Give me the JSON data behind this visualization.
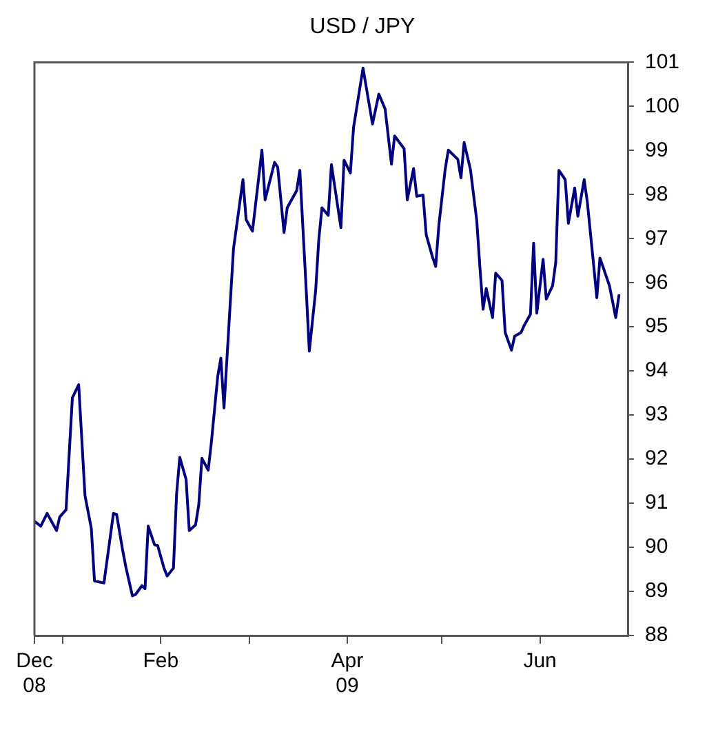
{
  "chart_data": {
    "type": "line",
    "title": "USD / JPY",
    "x": [
      "2008-12-23",
      "2008-12-25",
      "2008-12-27",
      "2008-12-28",
      "2008-12-30",
      "2008-12-31",
      "2009-01-02",
      "2009-01-04",
      "2009-01-06",
      "2009-01-08",
      "2009-01-10",
      "2009-01-11",
      "2009-01-14",
      "2009-01-17",
      "2009-01-18",
      "2009-01-20",
      "2009-01-21",
      "2009-01-23",
      "2009-01-24",
      "2009-01-26",
      "2009-01-27",
      "2009-01-28",
      "2009-01-30",
      "2009-01-31",
      "2009-02-02",
      "2009-02-03",
      "2009-02-05",
      "2009-02-06",
      "2009-02-07",
      "2009-02-09",
      "2009-02-10",
      "2009-02-12",
      "2009-02-13",
      "2009-02-14",
      "2009-02-16",
      "2009-02-17",
      "2009-02-19",
      "2009-02-20",
      "2009-02-21",
      "2009-02-24",
      "2009-02-27",
      "2009-02-28",
      "2009-03-02",
      "2009-03-05",
      "2009-03-06",
      "2009-03-09",
      "2009-03-10",
      "2009-03-12",
      "2009-03-13",
      "2009-03-16",
      "2009-03-17",
      "2009-03-19",
      "2009-03-20",
      "2009-03-22",
      "2009-03-23",
      "2009-03-24",
      "2009-03-26",
      "2009-03-27",
      "2009-03-30",
      "2009-03-31",
      "2009-04-02",
      "2009-04-03",
      "2009-04-06",
      "2009-04-09",
      "2009-04-11",
      "2009-04-13",
      "2009-04-15",
      "2009-04-16",
      "2009-04-19",
      "2009-04-20",
      "2009-04-22",
      "2009-04-23",
      "2009-04-25",
      "2009-04-26",
      "2009-04-28",
      "2009-04-29",
      "2009-04-30",
      "2009-05-02",
      "2009-05-03",
      "2009-05-05",
      "2009-05-06",
      "2009-05-07",
      "2009-05-08",
      "2009-05-10",
      "2009-05-12",
      "2009-05-13",
      "2009-05-14",
      "2009-05-15",
      "2009-05-17",
      "2009-05-18",
      "2009-05-20",
      "2009-05-21",
      "2009-05-23",
      "2009-05-24",
      "2009-05-26",
      "2009-05-27",
      "2009-05-29",
      "2009-05-30",
      "2009-05-31",
      "2009-06-02",
      "2009-06-03",
      "2009-06-05",
      "2009-06-06",
      "2009-06-07",
      "2009-06-09",
      "2009-06-10",
      "2009-06-12",
      "2009-06-13",
      "2009-06-15",
      "2009-06-16",
      "2009-06-18",
      "2009-06-19",
      "2009-06-20",
      "2009-06-23",
      "2009-06-25",
      "2009-06-26"
    ],
    "series": [
      {
        "color": "#000080",
        "values": [
          90.59,
          90.48,
          90.77,
          90.64,
          90.38,
          90.69,
          90.85,
          93.39,
          93.69,
          91.17,
          90.43,
          89.24,
          89.19,
          90.77,
          90.75,
          89.9,
          89.53,
          88.9,
          88.93,
          89.13,
          89.06,
          90.48,
          90.06,
          90.04,
          89.53,
          89.35,
          89.53,
          91.22,
          92.04,
          91.54,
          90.38,
          90.51,
          90.96,
          92.02,
          91.75,
          92.38,
          93.87,
          94.29,
          93.16,
          96.77,
          98.34,
          97.43,
          97.17,
          99.01,
          97.88,
          98.73,
          98.62,
          97.14,
          97.7,
          98.09,
          98.55,
          95.87,
          94.45,
          95.82,
          96.98,
          97.7,
          97.53,
          98.68,
          97.25,
          98.78,
          98.49,
          99.52,
          100.87,
          99.6,
          100.28,
          99.94,
          98.69,
          99.33,
          99.04,
          97.88,
          98.59,
          97.96,
          97.99,
          97.09,
          96.58,
          96.37,
          97.3,
          98.57,
          99.01,
          98.87,
          98.8,
          98.38,
          99.18,
          98.57,
          97.41,
          96.35,
          95.4,
          95.87,
          95.21,
          96.22,
          96.05,
          94.87,
          94.47,
          94.79,
          94.87,
          95.03,
          95.29,
          96.9,
          95.31,
          96.53,
          95.63,
          95.93,
          96.46,
          98.55,
          98.34,
          97.35,
          98.15,
          97.51,
          98.34,
          97.83,
          96.4,
          95.66,
          96.56,
          95.93,
          95.21,
          95.71
        ]
      }
    ],
    "xlim": [
      "2008-12-23",
      "2009-06-29"
    ],
    "xticks": [
      {
        "value": "2008-12-23",
        "label": "Dec\n08"
      },
      {
        "value": "2009-01-01",
        "label": null
      },
      {
        "value": "2009-02-01",
        "label": "Feb"
      },
      {
        "value": "2009-03-01",
        "label": null
      },
      {
        "value": "2009-04-01",
        "label": "Apr\n09"
      },
      {
        "value": "2009-05-01",
        "label": null
      },
      {
        "value": "2009-06-01",
        "label": "Jun"
      }
    ],
    "ylim": [
      88,
      101
    ],
    "yticks": [
      88,
      89,
      90,
      91,
      92,
      93,
      94,
      95,
      96,
      97,
      98,
      99,
      100,
      101
    ],
    "grid": false,
    "legend": false,
    "marker": "none",
    "line_style": "solid"
  }
}
